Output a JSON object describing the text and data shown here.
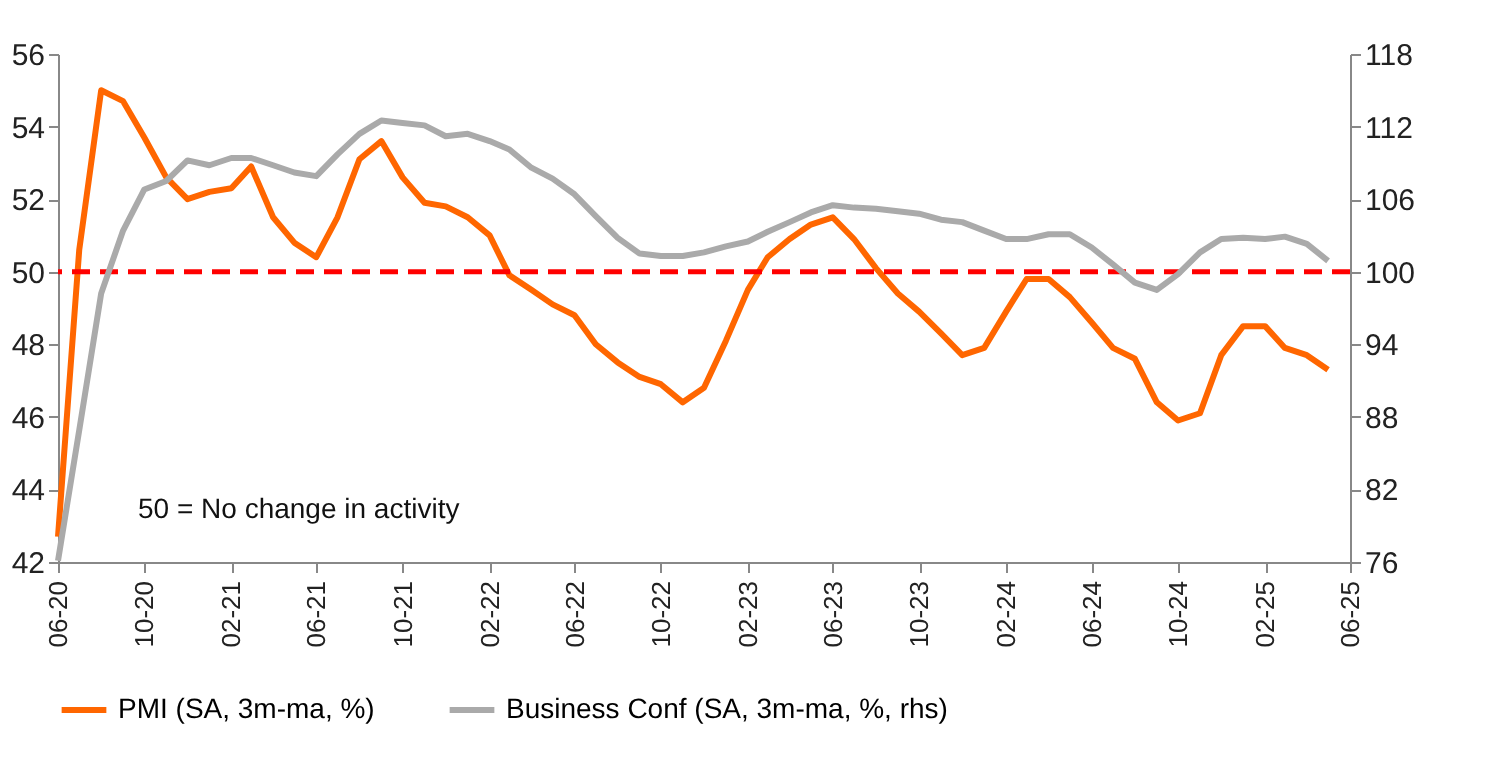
{
  "chart_data": {
    "type": "line",
    "x": [
      "2020-06",
      "2020-07",
      "2020-08",
      "2020-09",
      "2020-10",
      "2020-11",
      "2020-12",
      "2021-01",
      "2021-02",
      "2021-03",
      "2021-04",
      "2021-05",
      "2021-06",
      "2021-07",
      "2021-08",
      "2021-09",
      "2021-10",
      "2021-11",
      "2021-12",
      "2022-01",
      "2022-02",
      "2022-03",
      "2022-04",
      "2022-05",
      "2022-06",
      "2022-07",
      "2022-08",
      "2022-09",
      "2022-10",
      "2022-11",
      "2022-12",
      "2023-01",
      "2023-02",
      "2023-03",
      "2023-04",
      "2023-05",
      "2023-06",
      "2023-07",
      "2023-08",
      "2023-09",
      "2023-10",
      "2023-11",
      "2023-12",
      "2024-01",
      "2024-02",
      "2024-03",
      "2024-04",
      "2024-05",
      "2024-06",
      "2024-07",
      "2024-08",
      "2024-09",
      "2024-10",
      "2024-11",
      "2024-12",
      "2025-01",
      "2025-02",
      "2025-03",
      "2025-04",
      "2025-05"
    ],
    "series": [
      {
        "name": "PMI (SA, 3m-ma, %)",
        "color": "#ff6600",
        "values": [
          42.7,
          50.6,
          55.0,
          54.7,
          53.7,
          52.6,
          52.0,
          52.2,
          52.3,
          52.9,
          51.5,
          50.8,
          50.4,
          51.5,
          53.1,
          53.6,
          52.6,
          51.9,
          51.8,
          51.5,
          51.0,
          49.9,
          49.5,
          49.1,
          48.8,
          48.0,
          47.5,
          47.1,
          46.9,
          46.4,
          46.8,
          48.1,
          49.5,
          50.4,
          50.9,
          51.3,
          51.5,
          50.9,
          50.1,
          49.4,
          48.9,
          48.3,
          47.7,
          47.9,
          48.9,
          49.8,
          49.8,
          49.3,
          48.6,
          47.9,
          47.6,
          46.4,
          45.9,
          46.1,
          47.7,
          48.5,
          48.5,
          47.9,
          47.7,
          47.3
        ]
      },
      {
        "name": "Business Conf (SA, 3m-ma, %, rhs)",
        "color": "#aaaaaa",
        "axis": "y2",
        "values": [
          76.1,
          86.9,
          98.2,
          103.4,
          106.8,
          107.5,
          109.2,
          108.8,
          109.4,
          109.4,
          108.8,
          108.2,
          107.9,
          109.7,
          111.4,
          112.5,
          112.3,
          112.1,
          111.2,
          111.4,
          110.8,
          110.1,
          108.6,
          107.7,
          106.4,
          104.6,
          102.8,
          101.5,
          101.3,
          101.3,
          101.6,
          102.1,
          102.5,
          103.3,
          104.1,
          104.9,
          105.5,
          105.3,
          105.2,
          105.0,
          104.8,
          104.3,
          104.1,
          103.4,
          102.7,
          102.7,
          103.1,
          103.1,
          102.0,
          100.6,
          99.1,
          98.5,
          99.8,
          101.6,
          102.7,
          102.8,
          102.7,
          102.9,
          102.3,
          100.9
        ]
      }
    ],
    "xlim": [
      "2020-06",
      "2025-06"
    ],
    "xticks": [
      {
        "value": "2020-06",
        "label": "06-20"
      },
      {
        "value": "2020-10",
        "label": "10-20"
      },
      {
        "value": "2021-02",
        "label": "02-21"
      },
      {
        "value": "2021-06",
        "label": "06-21"
      },
      {
        "value": "2021-10",
        "label": "10-21"
      },
      {
        "value": "2022-02",
        "label": "02-22"
      },
      {
        "value": "2022-06",
        "label": "06-22"
      },
      {
        "value": "2022-10",
        "label": "10-22"
      },
      {
        "value": "2023-02",
        "label": "02-23"
      },
      {
        "value": "2023-06",
        "label": "06-23"
      },
      {
        "value": "2023-10",
        "label": "10-23"
      },
      {
        "value": "2024-02",
        "label": "02-24"
      },
      {
        "value": "2024-06",
        "label": "06-24"
      },
      {
        "value": "2024-10",
        "label": "10-24"
      },
      {
        "value": "2025-02",
        "label": "02-25"
      },
      {
        "value": "2025-06",
        "label": "06-25"
      }
    ],
    "ylim": [
      42,
      56
    ],
    "yticks": [
      42,
      44,
      46,
      48,
      50,
      52,
      54,
      56
    ],
    "y2lim": [
      76,
      118
    ],
    "y2ticks": [
      76,
      82,
      88,
      94,
      100,
      106,
      112,
      118
    ],
    "ref_lines": [
      {
        "axis": "y",
        "value": 50,
        "color": "#ff0000",
        "line_style": "dashed"
      }
    ],
    "annotations": [
      "50 = No change in activity"
    ],
    "legend": "bottom",
    "grid": false,
    "marker": "none",
    "line_style": "solid"
  }
}
